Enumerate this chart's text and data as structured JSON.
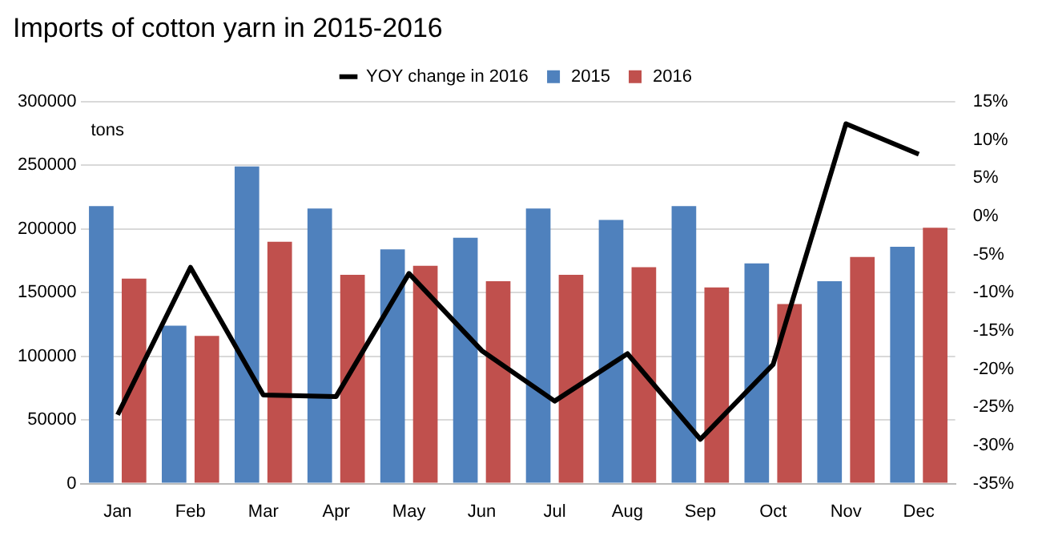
{
  "chart_data": {
    "type": "bar",
    "title": "Imports of cotton yarn in 2015-2016",
    "categories": [
      "Jan",
      "Feb",
      "Mar",
      "Apr",
      "May",
      "Jun",
      "Jul",
      "Aug",
      "Sep",
      "Oct",
      "Nov",
      "Dec"
    ],
    "series": [
      {
        "name": "2015",
        "color": "#4f81bd",
        "values": [
          218000,
          124000,
          249000,
          216000,
          184000,
          193000,
          216000,
          207000,
          218000,
          173000,
          159000,
          186000
        ]
      },
      {
        "name": "2016",
        "color": "#c0504d",
        "values": [
          161000,
          116000,
          190000,
          164000,
          171000,
          159000,
          164000,
          170000,
          154000,
          141000,
          178000,
          201000
        ]
      },
      {
        "name": "YOY change in 2016",
        "type": "line",
        "axis": "y2",
        "color": "#000000",
        "values": [
          -26,
          -6.7,
          -23.4,
          -23.6,
          -7.5,
          -17.6,
          -24.2,
          -18,
          -29.2,
          -19.4,
          12.1,
          8.1
        ]
      }
    ],
    "ylim": [
      0,
      300000
    ],
    "yticks": [
      0,
      50000,
      100000,
      150000,
      200000,
      250000,
      300000
    ],
    "y2lim": [
      -35,
      15
    ],
    "y2ticks": [
      {
        "value": -35,
        "label": "-35%"
      },
      {
        "value": -30,
        "label": "-30%"
      },
      {
        "value": -25,
        "label": "-25%"
      },
      {
        "value": -20,
        "label": "-20%"
      },
      {
        "value": -15,
        "label": "-15%"
      },
      {
        "value": -10,
        "label": "-10%"
      },
      {
        "value": -5,
        "label": "-5%"
      },
      {
        "value": 0,
        "label": "0%"
      },
      {
        "value": 5,
        "label": "5%"
      },
      {
        "value": 10,
        "label": "10%"
      },
      {
        "value": 15,
        "label": "15%"
      }
    ],
    "annotations": [
      "tons"
    ],
    "grid": "y",
    "legend": "top",
    "marker": "none",
    "line_style": "solid"
  }
}
